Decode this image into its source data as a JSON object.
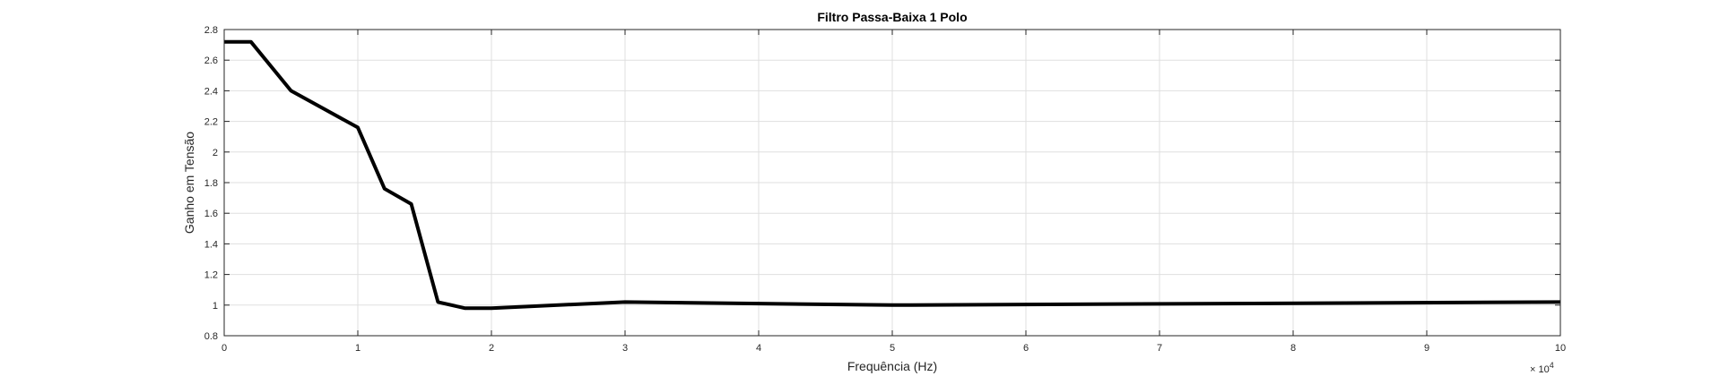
{
  "chart_data": {
    "type": "line",
    "title": "Filtro Passa-Baixa 1 Polo",
    "xlabel": "Frequência (Hz)",
    "ylabel": "Ganho em Tensão",
    "x_exponent_label": {
      "base": "× 10",
      "exp": "4"
    },
    "xlim": [
      0,
      100000
    ],
    "ylim": [
      0.8,
      2.8
    ],
    "x_ticks": [
      0,
      10000,
      20000,
      30000,
      40000,
      50000,
      60000,
      70000,
      80000,
      90000,
      100000
    ],
    "x_tick_labels": [
      "0",
      "1",
      "2",
      "3",
      "4",
      "5",
      "6",
      "7",
      "8",
      "9",
      "10"
    ],
    "y_ticks": [
      0.8,
      1.0,
      1.2,
      1.4,
      1.6,
      1.8,
      2.0,
      2.2,
      2.4,
      2.6,
      2.8
    ],
    "y_tick_labels": [
      "0.8",
      "1",
      "1.2",
      "1.4",
      "1.6",
      "1.8",
      "2",
      "2.2",
      "2.4",
      "2.6",
      "2.8"
    ],
    "grid": true,
    "series": [
      {
        "color": "#000000",
        "x": [
          0,
          2000,
          5000,
          10000,
          12000,
          14000,
          16000,
          18000,
          20000,
          30000,
          50000,
          100000
        ],
        "y": [
          2.72,
          2.72,
          2.4,
          2.16,
          1.76,
          1.66,
          1.02,
          0.98,
          0.98,
          1.02,
          1.0,
          1.02
        ]
      }
    ]
  }
}
